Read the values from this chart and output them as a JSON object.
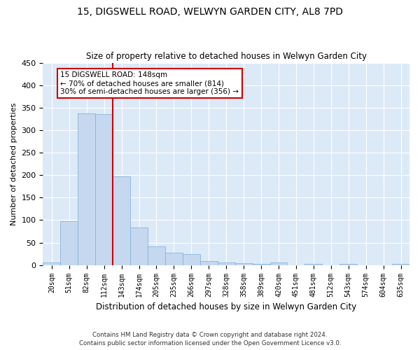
{
  "title": "15, DIGSWELL ROAD, WELWYN GARDEN CITY, AL8 7PD",
  "subtitle": "Size of property relative to detached houses in Welwyn Garden City",
  "xlabel": "Distribution of detached houses by size in Welwyn Garden City",
  "ylabel": "Number of detached properties",
  "bar_color": "#c5d8f0",
  "bar_edge_color": "#7aadd4",
  "background_color": "#dce9f7",
  "categories": [
    "20sqm",
    "51sqm",
    "82sqm",
    "112sqm",
    "143sqm",
    "174sqm",
    "205sqm",
    "235sqm",
    "266sqm",
    "297sqm",
    "328sqm",
    "358sqm",
    "389sqm",
    "420sqm",
    "451sqm",
    "481sqm",
    "512sqm",
    "543sqm",
    "574sqm",
    "604sqm",
    "635sqm"
  ],
  "values": [
    5,
    98,
    338,
    336,
    197,
    84,
    42,
    27,
    25,
    9,
    6,
    4,
    3,
    5,
    0,
    3,
    0,
    3,
    0,
    0,
    3
  ],
  "ylim": [
    0,
    450
  ],
  "yticks": [
    0,
    50,
    100,
    150,
    200,
    250,
    300,
    350,
    400,
    450
  ],
  "vline_x_idx": 3,
  "vline_color": "#cc0000",
  "annotation_text": "15 DIGSWELL ROAD: 148sqm\n← 70% of detached houses are smaller (814)\n30% of semi-detached houses are larger (356) →",
  "annotation_box_color": "#ffffff",
  "annotation_box_edge": "#cc0000",
  "footer1": "Contains HM Land Registry data © Crown copyright and database right 2024.",
  "footer2": "Contains public sector information licensed under the Open Government Licence v3.0.",
  "figsize": [
    6.0,
    5.0
  ],
  "dpi": 100
}
